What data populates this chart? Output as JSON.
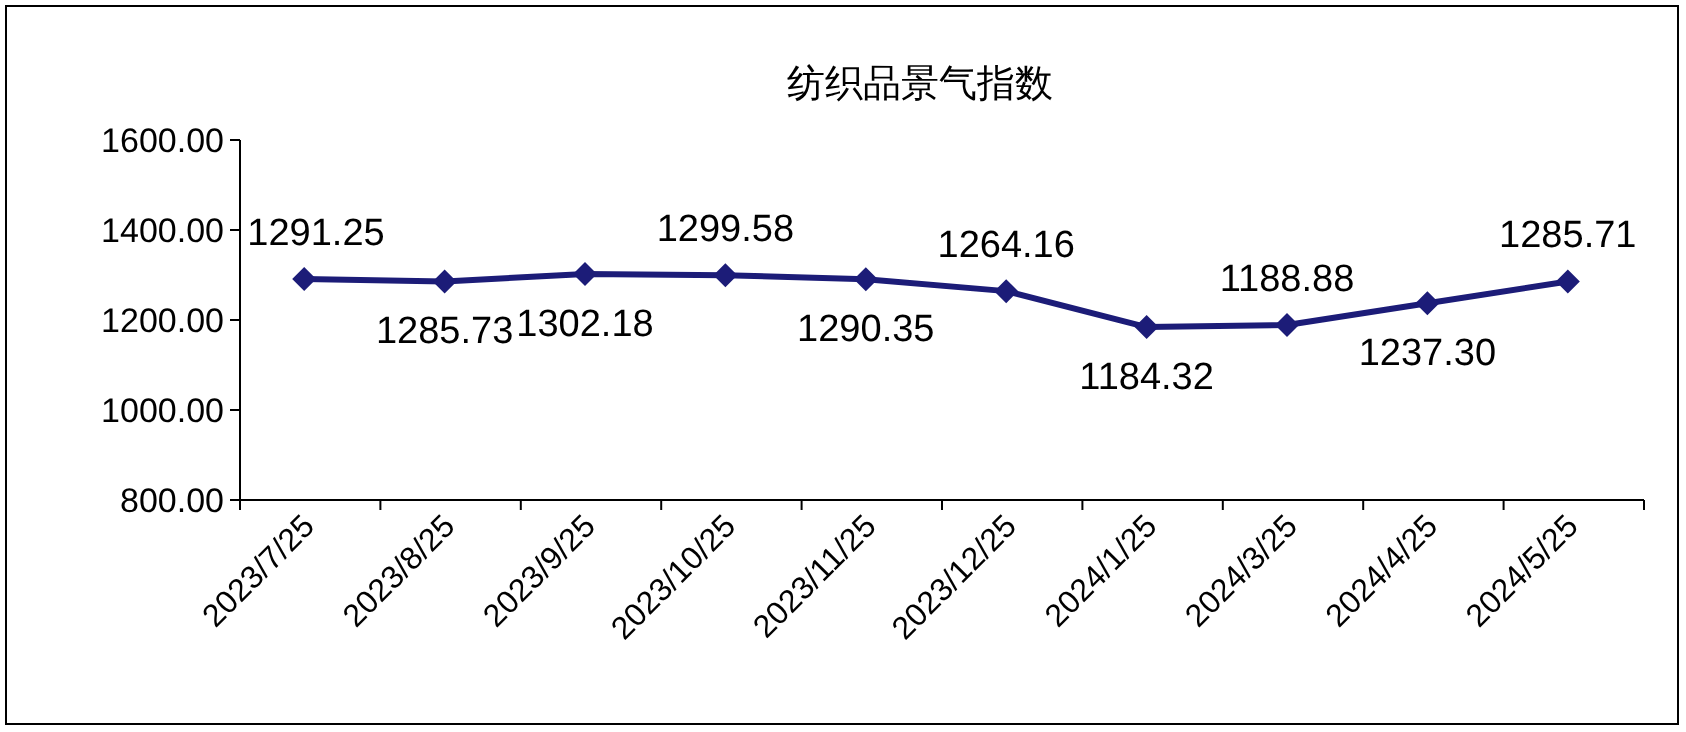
{
  "chart_data": {
    "type": "line",
    "title": "纺织品景气指数",
    "categories": [
      "2023/7/25",
      "2023/8/25",
      "2023/9/25",
      "2023/10/25",
      "2023/11/25",
      "2023/12/25",
      "2024/1/25",
      "2024/3/25",
      "2024/4/25",
      "2024/5/25"
    ],
    "series": [
      {
        "color": "#1c1c78",
        "values": [
          1291.25,
          1285.73,
          1302.18,
          1299.58,
          1290.35,
          1264.16,
          1184.32,
          1188.88,
          1237.3,
          1285.71
        ],
        "value_labels": [
          "1291.25",
          "1285.73",
          "1302.18",
          "1299.58",
          "1290.35",
          "1264.16",
          "1184.32",
          "1188.88",
          "1237.30",
          "1285.71"
        ]
      }
    ],
    "ylim": [
      800,
      1600
    ],
    "yticks": [
      {
        "value": 800,
        "label": "800.00"
      },
      {
        "value": 1000,
        "label": "1000.00"
      },
      {
        "value": 1200,
        "label": "1200.00"
      },
      {
        "value": 1400,
        "label": "1400.00"
      },
      {
        "value": 1600,
        "label": "1600.00"
      }
    ],
    "marker": "diamond",
    "line_style": "solid",
    "grid": false
  }
}
